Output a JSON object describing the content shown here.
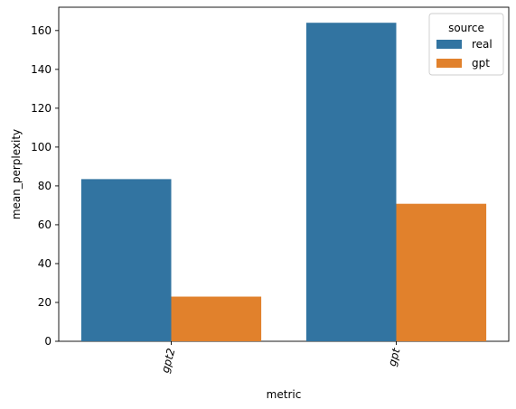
{
  "chart_data": {
    "type": "bar",
    "title": "",
    "xlabel": "metric",
    "ylabel": "mean_perplexity",
    "categories": [
      "gpt2",
      "gpt"
    ],
    "series": [
      {
        "name": "real",
        "values": [
          83.5,
          164.0
        ]
      },
      {
        "name": "gpt",
        "values": [
          23.0,
          70.8
        ]
      }
    ],
    "ylim": [
      0,
      172
    ],
    "yticks": [
      0,
      20,
      40,
      60,
      80,
      100,
      120,
      140,
      160
    ],
    "x_tick_rotation": "rotated ~75°",
    "grid": false,
    "legend": {
      "title": "source",
      "position": "top-right"
    },
    "colors": {
      "real": "#3274a1",
      "gpt": "#e1812c"
    }
  }
}
